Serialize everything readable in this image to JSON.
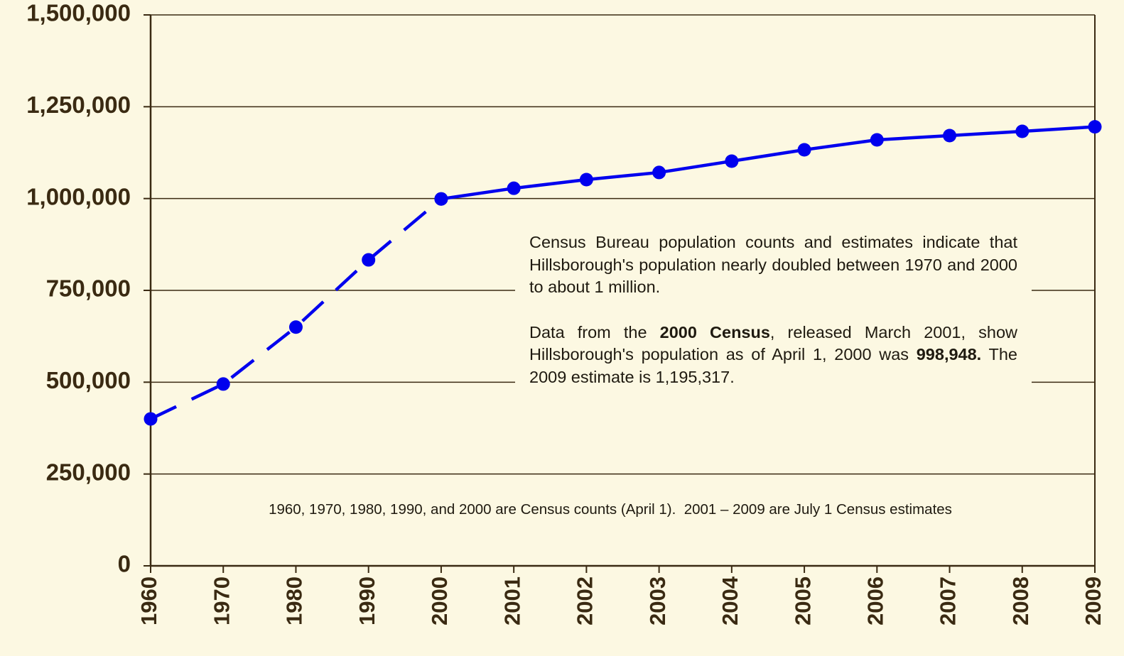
{
  "chart_data": {
    "type": "line",
    "categories": [
      "1960",
      "1970",
      "1980",
      "1990",
      "2000",
      "2001",
      "2002",
      "2003",
      "2004",
      "2005",
      "2006",
      "2007",
      "2008",
      "2009"
    ],
    "series": [
      {
        "color": "#0000ee",
        "dashed": true,
        "values": [
          400000,
          495000,
          650000,
          833000,
          998948,
          null,
          null,
          null,
          null,
          null,
          null,
          null,
          null,
          null
        ]
      },
      {
        "color": "#0000ee",
        "dashed": false,
        "values": [
          null,
          null,
          null,
          null,
          998948,
          1028000,
          1051500,
          1071000,
          1101800,
          1132700,
          1159800,
          1171400,
          1183000,
          1195317
        ]
      }
    ],
    "ylim": [
      0,
      1500000
    ],
    "yticks": [
      0,
      {
        "value": 250000,
        "label": "250,000"
      },
      {
        "value": 500000,
        "label": "500,000"
      },
      {
        "value": 750000,
        "label": "750,000"
      },
      {
        "value": 1000000,
        "label": "1,000,000"
      },
      {
        "value": 1250000,
        "label": "1,250,000"
      },
      {
        "value": 1500000,
        "label": "1,500,000"
      }
    ],
    "grid": true,
    "annotation": [
      [
        {
          "text": "Census Bureau population counts and estimates indicate that Hillsborough's population nearly doubled between 1970 and 2000 to about 1 million.",
          "bold": false
        }
      ],
      [
        {
          "text": "Data from the ",
          "bold": false
        },
        {
          "text": "2000 Census",
          "bold": true
        },
        {
          "text": ", released March 2001, show Hillsborough's population as of April 1, 2000 was ",
          "bold": false
        },
        {
          "text": "998,948.",
          "bold": true
        },
        {
          "text": " The 2009 estimate is 1,195,317.",
          "bold": false
        }
      ]
    ],
    "footnote": "1960, 1970, 1980, 1990, and 2000 are Census counts (April 1).  2001 – 2009 are July 1 Census estimates"
  }
}
